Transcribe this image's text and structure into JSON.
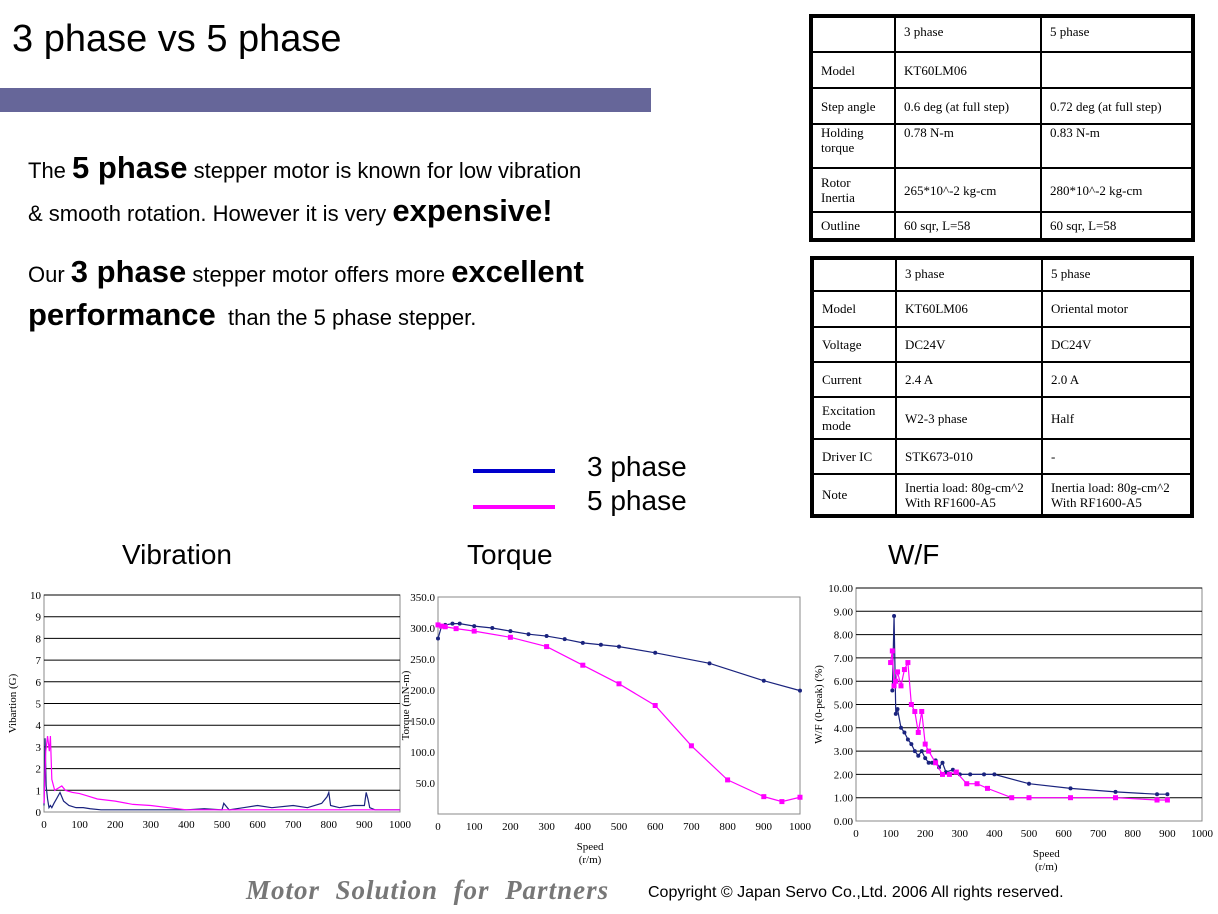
{
  "slide": {
    "title": "3 phase vs 5 phase",
    "para1": {
      "a": "The ",
      "b": "5 phase",
      "c": " stepper motor is known for low vibration",
      "d": "& smooth rotation. However it is very ",
      "e": "expensive!"
    },
    "para2": {
      "a": "Our ",
      "b": "3 phase",
      "c": " stepper motor offers more ",
      "d": "excellent",
      "e": "performance",
      "f": "  than the 5 phase stepper."
    }
  },
  "table1": {
    "rows": [
      [
        "",
        "3 phase",
        "5 phase"
      ],
      [
        "Model",
        "KT60LM06",
        ""
      ],
      [
        "Step angle",
        "0.6 deg (at full step)",
        "0.72 deg (at full step)"
      ],
      [
        "Holding torque",
        "0.78 N-m",
        "0.83 N-m"
      ],
      [
        "Rotor Inertia",
        "265*10^-2 kg-cm",
        "280*10^-2 kg-cm"
      ],
      [
        "Outline",
        "60 sqr, L=58",
        "60 sqr, L=58"
      ]
    ]
  },
  "table2": {
    "rows": [
      [
        "",
        "3  phase",
        "5 phase"
      ],
      [
        "Model",
        "KT60LM06",
        "Oriental motor"
      ],
      [
        "Voltage",
        "DC24V",
        "DC24V"
      ],
      [
        "Current",
        "2.4 A",
        "2.0 A"
      ],
      [
        "Excitation mode",
        "W2-3 phase",
        "Half"
      ],
      [
        "Driver IC",
        "STK673-010",
        "-"
      ],
      [
        "Note",
        "Inertia load: 80g-cm^2 With RF1600-A5",
        "Inertia load: 80g-cm^2 With RF1600-A5"
      ]
    ]
  },
  "legend": {
    "items": [
      {
        "label": "3 phase",
        "color": "#0000cc"
      },
      {
        "label": "5 phase",
        "color": "#ff00ff"
      }
    ]
  },
  "chart_titles": {
    "vibration": "Vibration",
    "torque": "Torque",
    "wf": "W/F"
  },
  "chart_data": [
    {
      "type": "line",
      "title": "Vibration",
      "ylabel": "Vibartion (G)",
      "xlabel": "",
      "xlim": [
        0,
        1000
      ],
      "ylim": [
        0,
        10
      ],
      "xticks": [
        "0",
        "100",
        "200",
        "300",
        "400",
        "500",
        "600",
        "700",
        "800",
        "900",
        "1000"
      ],
      "yticks": [
        "0",
        "1",
        "2",
        "3",
        "4",
        "5",
        "6",
        "7",
        "8",
        "9",
        "10"
      ],
      "grid": true,
      "series": [
        {
          "name": "3 phase",
          "color": "#1a237e",
          "x": [
            0,
            3,
            6,
            10,
            14,
            18,
            22,
            28,
            35,
            45,
            55,
            70,
            90,
            110,
            130,
            160,
            200,
            250,
            300,
            350,
            400,
            450,
            500,
            505,
            520,
            560,
            600,
            640,
            700,
            740,
            780,
            795,
            800,
            805,
            830,
            870,
            900,
            905,
            910,
            915,
            930,
            960,
            1000
          ],
          "y": [
            0.3,
            3.4,
            1.2,
            0.6,
            0.2,
            0.3,
            0.2,
            0.4,
            0.6,
            0.9,
            0.5,
            0.3,
            0.2,
            0.2,
            0.15,
            0.1,
            0.1,
            0.1,
            0.1,
            0.1,
            0.1,
            0.15,
            0.1,
            0.4,
            0.1,
            0.2,
            0.3,
            0.2,
            0.3,
            0.2,
            0.4,
            0.7,
            0.9,
            0.3,
            0.2,
            0.3,
            0.3,
            0.9,
            0.6,
            0.2,
            0.1,
            0.1,
            0.1
          ]
        },
        {
          "name": "5 phase",
          "color": "#ff00ff",
          "x": [
            0,
            5,
            10,
            15,
            18,
            22,
            30,
            40,
            50,
            60,
            80,
            100,
            120,
            150,
            200,
            250,
            300,
            350,
            400,
            450,
            500,
            600,
            700,
            800,
            900,
            1000
          ],
          "y": [
            0.4,
            2.8,
            3.5,
            2.8,
            3.5,
            1.5,
            1.0,
            1.1,
            1.2,
            1.0,
            0.9,
            0.85,
            0.75,
            0.6,
            0.5,
            0.35,
            0.3,
            0.2,
            0.1,
            0.1,
            0.1,
            0.1,
            0.1,
            0.1,
            0.1,
            0.1
          ]
        }
      ]
    },
    {
      "type": "line",
      "title": "Torque",
      "ylabel": "Torque (mN-m)",
      "xlabel": "Speed (r/m)",
      "xlim": [
        0,
        1000
      ],
      "ylim": [
        0,
        350
      ],
      "xticks": [
        "0",
        "100",
        "200",
        "300",
        "400",
        "500",
        "600",
        "700",
        "800",
        "900",
        "1000"
      ],
      "yticks": [
        "50.0",
        "100.0",
        "150.0",
        "200.0",
        "250.0",
        "300.0",
        "350.0"
      ],
      "grid": false,
      "series": [
        {
          "name": "3 phase",
          "color": "#1a237e",
          "x": [
            0,
            10,
            20,
            40,
            60,
            100,
            150,
            200,
            250,
            300,
            350,
            400,
            450,
            500,
            600,
            750,
            900,
            1000
          ],
          "y": [
            283,
            303,
            305,
            307,
            307,
            303,
            300,
            295,
            290,
            287,
            282,
            276,
            273,
            270,
            260,
            243,
            215,
            199
          ]
        },
        {
          "name": "5 phase",
          "color": "#ff00ff",
          "x": [
            0,
            10,
            20,
            50,
            100,
            200,
            300,
            400,
            500,
            600,
            700,
            800,
            900,
            950,
            1000
          ],
          "y": [
            305,
            303,
            302,
            299,
            295,
            285,
            270,
            240,
            210,
            175,
            110,
            55,
            28,
            20,
            27
          ]
        }
      ]
    },
    {
      "type": "line",
      "title": "W/F",
      "ylabel": "W/F (0-peak) (%)",
      "xlabel": "Speed (r/m)",
      "xlim": [
        0,
        1000
      ],
      "ylim": [
        0,
        10
      ],
      "xticks": [
        "0",
        "100",
        "200",
        "300",
        "400",
        "500",
        "600",
        "700",
        "800",
        "900",
        "1000"
      ],
      "yticks": [
        "0.00",
        "1.00",
        "2.00",
        "3.00",
        "4.00",
        "5.00",
        "6.00",
        "7.00",
        "8.00",
        "9.00",
        "10.00"
      ],
      "grid": true,
      "series": [
        {
          "name": "3 phase",
          "color": "#1a237e",
          "x": [
            105,
            110,
            115,
            120,
            130,
            140,
            150,
            160,
            170,
            180,
            190,
            200,
            210,
            220,
            230,
            240,
            250,
            260,
            280,
            300,
            330,
            370,
            400,
            500,
            620,
            750,
            870,
            900
          ],
          "y": [
            5.6,
            8.8,
            4.6,
            4.8,
            4.0,
            3.8,
            3.5,
            3.3,
            3.0,
            2.8,
            3.0,
            2.7,
            2.5,
            2.5,
            2.6,
            2.3,
            2.5,
            2.1,
            2.2,
            2.0,
            2.0,
            2.0,
            2.0,
            1.6,
            1.4,
            1.25,
            1.15,
            1.15
          ]
        },
        {
          "name": "5 phase",
          "color": "#ff00ff",
          "x": [
            100,
            105,
            110,
            115,
            120,
            130,
            140,
            150,
            160,
            170,
            180,
            190,
            200,
            210,
            230,
            250,
            270,
            290,
            320,
            350,
            380,
            450,
            500,
            620,
            750,
            870,
            900
          ],
          "y": [
            6.8,
            7.3,
            5.8,
            6.0,
            6.4,
            5.8,
            6.5,
            6.8,
            5.0,
            4.7,
            3.8,
            4.7,
            3.3,
            3.0,
            2.5,
            2.0,
            2.0,
            2.1,
            1.6,
            1.6,
            1.4,
            1.0,
            1.0,
            1.0,
            1.0,
            0.9,
            0.9
          ]
        }
      ]
    }
  ],
  "footer": {
    "brand": "Motor  Solution  for  Partners",
    "copyright": "Copyright © Japan Servo Co.,Ltd. 2006 All rights reserved."
  }
}
